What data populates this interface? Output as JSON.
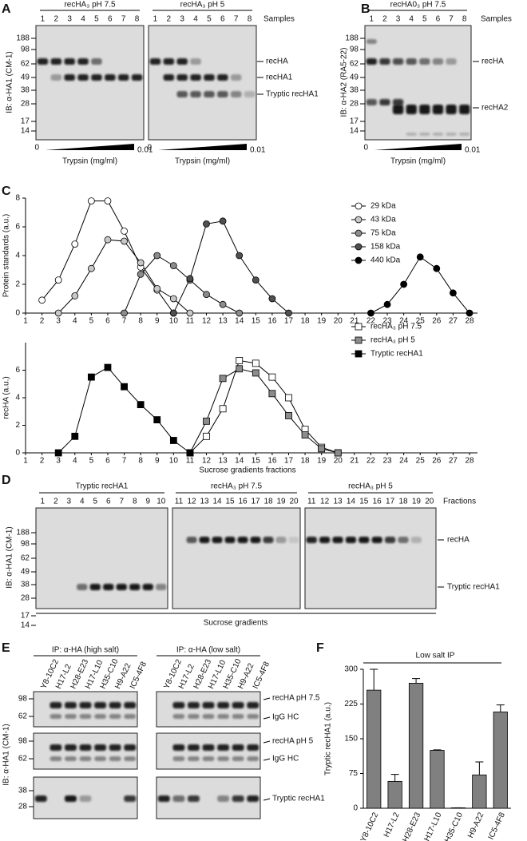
{
  "panel_labels": [
    "A",
    "B",
    "C",
    "D",
    "E",
    "F"
  ],
  "blot_a": {
    "titles": [
      "recHA₃ pH 7.5",
      "recHA₃ pH 5"
    ],
    "lanes": [
      1,
      2,
      3,
      4,
      5,
      6,
      7,
      8
    ],
    "lanes_caption": "Samples",
    "mw": [
      188,
      98,
      62,
      49,
      38,
      28,
      17,
      14
    ],
    "bands": [
      "recHA",
      "recHA1",
      "Tryptic recHA1"
    ],
    "ylabel": "IB: α-HA1 (CM-1)",
    "dose_start": "0",
    "dose_end": "0.01",
    "xlabel": "Trypsin (mg/ml)"
  },
  "blot_b": {
    "title": "recHA0₃ pH 7.5",
    "lanes": [
      1,
      2,
      3,
      4,
      5,
      6,
      7,
      8
    ],
    "lanes_caption": "Samples",
    "mw": [
      188,
      98,
      62,
      49,
      38,
      28,
      17,
      14
    ],
    "bands": [
      "recHA",
      "recHA2"
    ],
    "ylabel": "IB: α-HA2 (RA5-22)",
    "dose_start": "0",
    "dose_end": "0.01",
    "xlabel": "Trypsin (mg/ml)"
  },
  "blot_d": {
    "titles": [
      "Tryptic recHA1",
      "recHA₃ pH 7.5",
      "recHA₃ pH 5"
    ],
    "lanes": [
      [
        1,
        2,
        3,
        4,
        5,
        6,
        7,
        8,
        9,
        10
      ],
      [
        11,
        12,
        13,
        14,
        15,
        16,
        17,
        18,
        19,
        20
      ],
      [
        11,
        12,
        13,
        14,
        15,
        16,
        17,
        18,
        19,
        20
      ]
    ],
    "lanes_caption": "Fractions",
    "mw": [
      188,
      98,
      62,
      49,
      38,
      28,
      17,
      14
    ],
    "bands": [
      "recHA",
      "Tryptic recHA1"
    ],
    "ylabel": "IB: α-HA1 (CM-1)",
    "xlabel": "Sucrose gradients"
  },
  "blot_e": {
    "titles": [
      "IP: α-HA (high salt)",
      "IP: α-HA (low salt)"
    ],
    "antibodies": [
      "Y8-10C2",
      "H17-L2",
      "H28-E23",
      "H17-L10",
      "H35-C10",
      "H9-A22",
      "IC5-4F8"
    ],
    "mw": [
      [
        98,
        62
      ],
      [
        98,
        62
      ],
      [
        38,
        28
      ]
    ],
    "bands": [
      "recHA pH 7.5",
      "IgG HC",
      "recHA pH 5",
      "IgG HC",
      "Tryptic recHA1"
    ],
    "ylabel": "IB: α-HA1 (CM-1)"
  },
  "chart_data": [
    {
      "type": "line",
      "ylabel": "Protein standards (a.u.)",
      "marker": "circle",
      "x": [
        1,
        2,
        3,
        4,
        5,
        6,
        7,
        8,
        9,
        10,
        11,
        12,
        13,
        14,
        15,
        16,
        17,
        18,
        19,
        20,
        21,
        22,
        23,
        24,
        25,
        26,
        27,
        28
      ],
      "xlim": [
        1,
        28
      ],
      "xticks": [
        1,
        2,
        3,
        4,
        5,
        6,
        7,
        8,
        9,
        10,
        11,
        12,
        13,
        14,
        15,
        16,
        17,
        18,
        19,
        20,
        21,
        22,
        23,
        24,
        25,
        26,
        27,
        28
      ],
      "ylim": [
        0,
        8
      ],
      "yticks": [
        0,
        2,
        4,
        6,
        8
      ],
      "series": [
        {
          "name": "29 kDa",
          "color": "#ffffff",
          "values": [
            null,
            0.9,
            2.3,
            4.8,
            7.8,
            7.8,
            5.7,
            3.2,
            1.6,
            0,
            null,
            null,
            null,
            null,
            null,
            null,
            null,
            null,
            null,
            null,
            null,
            null,
            null,
            null,
            null,
            null,
            null,
            null
          ]
        },
        {
          "name": "43 kDa",
          "color": "#c8c8c8",
          "values": [
            null,
            null,
            0,
            1.2,
            3.1,
            5.1,
            5.0,
            3.5,
            1.7,
            1.0,
            0,
            null,
            null,
            null,
            null,
            null,
            null,
            null,
            null,
            null,
            null,
            null,
            null,
            null,
            null,
            null,
            null,
            null
          ]
        },
        {
          "name": "75 kDa",
          "color": "#8c8c8c",
          "values": [
            null,
            null,
            null,
            null,
            null,
            null,
            0,
            2.7,
            4.0,
            3.3,
            2.3,
            1.3,
            0.6,
            0,
            null,
            null,
            null,
            null,
            null,
            null,
            null,
            null,
            null,
            null,
            null,
            null,
            null,
            null
          ]
        },
        {
          "name": "158 kDa",
          "color": "#505050",
          "values": [
            null,
            null,
            null,
            null,
            null,
            null,
            null,
            null,
            null,
            0,
            2.4,
            6.2,
            6.4,
            4.0,
            2.3,
            1.0,
            0,
            null,
            null,
            null,
            null,
            null,
            null,
            null,
            null,
            null,
            null,
            null
          ]
        },
        {
          "name": "440 kDa",
          "color": "#000000",
          "values": [
            null,
            null,
            null,
            null,
            null,
            null,
            null,
            null,
            null,
            null,
            null,
            null,
            null,
            null,
            null,
            null,
            null,
            null,
            null,
            null,
            null,
            0,
            0.6,
            2.0,
            3.9,
            3.1,
            1.4,
            0
          ]
        }
      ]
    },
    {
      "type": "line",
      "ylabel": "recHA (a.u.)",
      "xlabel": "Sucrose gradients fractions",
      "marker": "square",
      "x": [
        1,
        2,
        3,
        4,
        5,
        6,
        7,
        8,
        9,
        10,
        11,
        12,
        13,
        14,
        15,
        16,
        17,
        18,
        19,
        20,
        21,
        22,
        23,
        24,
        25,
        26,
        27,
        28
      ],
      "xlim": [
        1,
        28
      ],
      "xticks": [
        1,
        2,
        3,
        4,
        5,
        6,
        7,
        8,
        9,
        10,
        11,
        12,
        13,
        14,
        15,
        16,
        17,
        18,
        19,
        20,
        21,
        22,
        23,
        24,
        25,
        26,
        27,
        28
      ],
      "ylim": [
        0,
        8
      ],
      "yticks": [
        0,
        2,
        4,
        6
      ],
      "series": [
        {
          "name": "recHA₃ pH 7.5",
          "color": "#ffffff",
          "values": [
            null,
            null,
            null,
            null,
            null,
            null,
            null,
            null,
            null,
            null,
            0,
            1.2,
            3.2,
            6.7,
            6.5,
            5.5,
            4.0,
            1.7,
            0.4,
            0,
            null,
            null,
            null,
            null,
            null,
            null,
            null,
            null
          ]
        },
        {
          "name": "recHA₃ pH 5",
          "color": "#8c8c8c",
          "values": [
            null,
            null,
            null,
            null,
            null,
            null,
            null,
            null,
            null,
            null,
            0,
            2.3,
            5.4,
            6.1,
            5.8,
            4.3,
            2.7,
            1.3,
            0.3,
            0,
            null,
            null,
            null,
            null,
            null,
            null,
            null,
            null
          ]
        },
        {
          "name": "Tryptic recHA1",
          "color": "#000000",
          "values": [
            null,
            null,
            0,
            1.2,
            5.5,
            6.2,
            4.8,
            3.5,
            2.4,
            0.9,
            0,
            null,
            null,
            null,
            null,
            null,
            null,
            null,
            null,
            null,
            null,
            null,
            null,
            null,
            null,
            null,
            null,
            null
          ]
        }
      ]
    },
    {
      "type": "bar",
      "title": "Low salt IP",
      "ylabel": "Tryptic recHA1 (a.u.)",
      "color": "#808080",
      "categories": [
        "Y8-10C2",
        "H17-L2",
        "H28-E23",
        "H17-L10",
        "H35-C10",
        "H9-A22",
        "IC5-4F8"
      ],
      "values": [
        255,
        58,
        270,
        125,
        1,
        72,
        208
      ],
      "errors": [
        45,
        15,
        10,
        1,
        0,
        28,
        15
      ],
      "ylim": [
        0,
        300
      ],
      "yticks": [
        0,
        75,
        150,
        225,
        300
      ]
    }
  ]
}
